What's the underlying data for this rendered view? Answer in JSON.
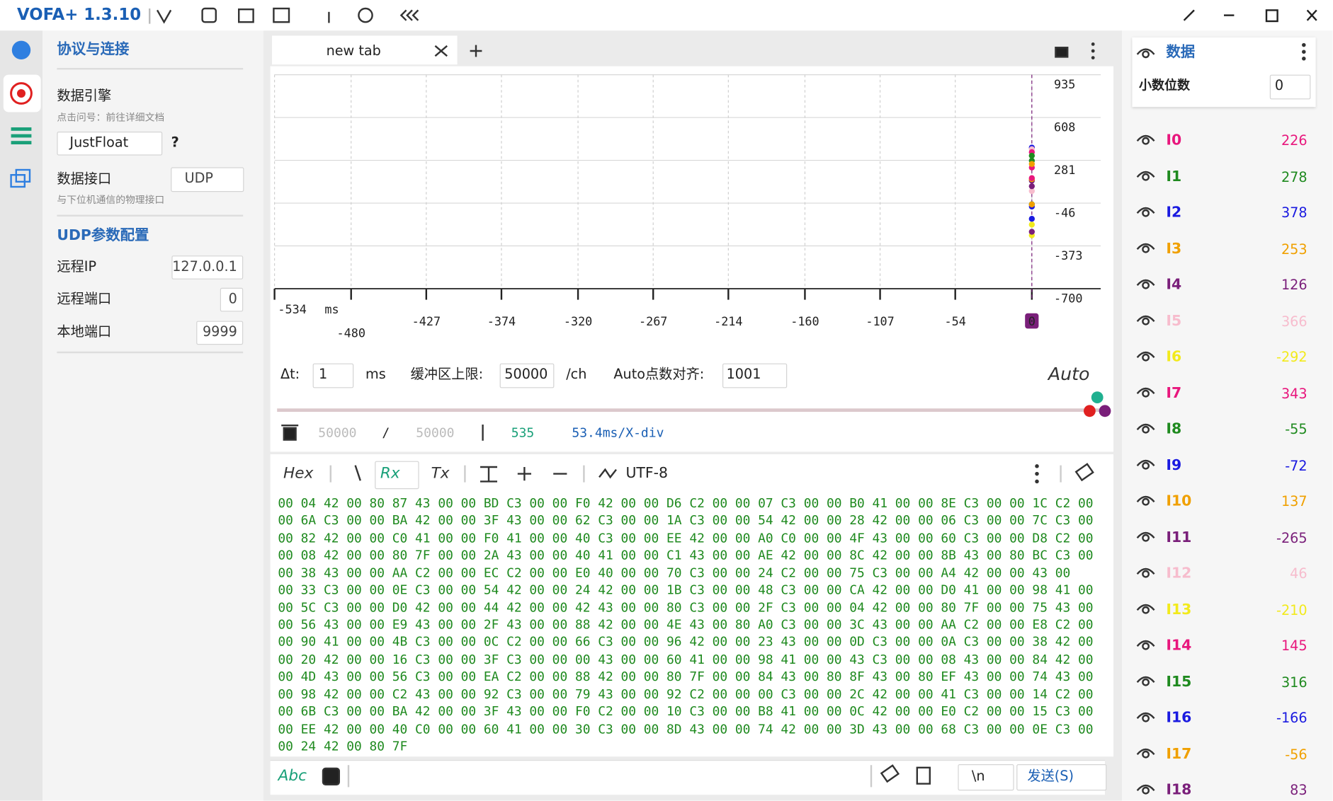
{
  "app": {
    "title": "VOFA+ 1.3.10"
  },
  "left_panel": {
    "section_title": "协议与连接",
    "engine_label": "数据引擎",
    "engine_hint": "点击问号：前往详细文档",
    "engine_value": "JustFloat",
    "help": "?",
    "interface_label": "数据接口",
    "interface_value": "UDP",
    "interface_hint": "与下位机通信的物理接口",
    "udp_title": "UDP参数配置",
    "fields": [
      {
        "label": "远程IP",
        "value": "127.0.0.1"
      },
      {
        "label": "远程端口",
        "value": 0
      },
      {
        "label": "本地端口",
        "value": 9999
      }
    ]
  },
  "tab": {
    "title": "new tab"
  },
  "plot": {
    "xlim": [
      -534,
      0
    ],
    "xticks": [
      -534,
      -480,
      -427,
      -374,
      -320,
      -267,
      -214,
      -160,
      -107,
      -54,
      0
    ],
    "x_unit": "ms",
    "ylim": [
      -700,
      935
    ],
    "yticks": [
      935,
      608,
      281,
      -46,
      -373,
      -700
    ]
  },
  "controls": {
    "dt_label": "Δt:",
    "dt_value": 1,
    "dt_unit": "ms",
    "buffer_label": "缓冲区上限:",
    "buffer_value": 50000,
    "buffer_unit": "/ch",
    "auto_align_label": "Auto点数对齐:",
    "auto_align_value": 1001,
    "mode": "Auto"
  },
  "status": {
    "used": 50000,
    "separator": "/",
    "capacity": 50000,
    "points": 535,
    "x_div": "53.4ms/X-div"
  },
  "toolbar": {
    "hex": "Hex",
    "rx": "Rx",
    "tx": "Tx",
    "encoding": "UTF-8"
  },
  "hex_lines": [
    "00 04 42 00 80 87 43 00 00 BD C3 00 00 F0 42 00 00 D6 C2 00 00 07 C3 00 00 B0 41 00 00 8E C3 00 00 1C C2 00",
    "00 6A C3 00 00 BA 42 00 00 3F 43 00 00 62 C3 00 00 1A C3 00 00 54 42 00 00 28 42 00 00 06 C3 00 00 7C C3 00",
    "00 82 42 00 00 C0 41 00 00 F0 41 00 00 40 C3 00 00 EE 42 00 00 A0 C0 00 00 4F 43 00 00 60 C3 00 00 D8 C2 00",
    "00 08 42 00 00 80 7F 00 00 2A 43 00 00 40 41 00 00 C1 43 00 00 AE 42 00 00 8C 42 00 00 8B 43 00 80 BC C3 00",
    "00 38 43 00 00 AA C2 00 00 EC C2 00 00 E0 40 00 00 70 C3 00 00 24 C2 00 00 75 C3 00 00 A4 42 00 00 43 00",
    "00 33 C3 00 00 0E C3 00 00 54 42 00 00 24 42 00 00 1B C3 00 00 48 C3 00 00 CA 42 00 00 D0 41 00 00 98 41 00",
    "00 5C C3 00 00 D0 42 00 00 44 42 00 00 42 43 00 00 80 C3 00 00 2F C3 00 00 04 42 00 00 80 7F 00 00 75 43 00",
    "00 56 43 00 00 E9 43 00 00 2F 43 00 00 88 42 00 00 4E 43 00 80 A0 C3 00 00 3C 43 00 00 AA C2 00 00 E8 C2 00",
    "00 90 41 00 00 4B C3 00 00 0C C2 00 00 66 C3 00 00 96 42 00 00 23 43 00 00 0D C3 00 00 0A C3 00 00 38 42 00",
    "00 20 42 00 00 16 C3 00 00 3F C3 00 00 00 43 00 00 60 41 00 00 98 41 00 00 43 C3 00 00 08 43 00 00 84 42 00",
    "00 4D 43 00 00 56 C3 00 00 EA C2 00 00 88 42 00 00 80 7F 00 00 84 43 00 80 8F 43 00 80 EF 43 00 00 74 43 00",
    "00 98 42 00 00 C2 43 00 00 92 C3 00 00 79 43 00 00 92 C2 00 00 00 C3 00 00 2C 42 00 00 41 C3 00 00 14 C2 00",
    "00 6B C3 00 00 BA 42 00 00 3F 43 00 00 F0 C2 00 00 10 C3 00 00 B8 41 00 00 0C 42 00 00 E0 C2 00 00 15 C3 00",
    "00 EE 42 00 00 40 C0 00 00 60 41 00 00 30 C3 00 00 8D 43 00 00 74 42 00 00 3D 43 00 00 68 C3 00 00 0E C3 00",
    "00 24 42 00 80 7F"
  ],
  "send_bar": {
    "format": "Abc",
    "line_ending": "\\n",
    "send": "发送(S)"
  },
  "data_panel": {
    "title": "数据",
    "decimals_label": "小数位数",
    "decimals_value": 0,
    "channels": [
      {
        "name": "I0",
        "color": "#e8177d",
        "value": 226
      },
      {
        "name": "I1",
        "color": "#1f8a1f",
        "value": 278
      },
      {
        "name": "I2",
        "color": "#1a1ae0",
        "value": 378
      },
      {
        "name": "I3",
        "color": "#f0a000",
        "value": 253
      },
      {
        "name": "I4",
        "color": "#7a1f7a",
        "value": 126
      },
      {
        "name": "I5",
        "color": "#f7bccd",
        "value": 366
      },
      {
        "name": "I6",
        "color": "#f2ea1c",
        "value": -292
      },
      {
        "name": "I7",
        "color": "#e8177d",
        "value": 343
      },
      {
        "name": "I8",
        "color": "#1f8a1f",
        "value": -55
      },
      {
        "name": "I9",
        "color": "#1a1ae0",
        "value": -72
      },
      {
        "name": "I10",
        "color": "#f0a000",
        "value": 137
      },
      {
        "name": "I11",
        "color": "#7a1f7a",
        "value": -265
      },
      {
        "name": "I12",
        "color": "#f7bccd",
        "value": 46
      },
      {
        "name": "I13",
        "color": "#f2ea1c",
        "value": -210
      },
      {
        "name": "I14",
        "color": "#e8177d",
        "value": 145
      },
      {
        "name": "I15",
        "color": "#1f8a1f",
        "value": 316
      },
      {
        "name": "I16",
        "color": "#1a1ae0",
        "value": -166
      },
      {
        "name": "I17",
        "color": "#f0a000",
        "value": -56
      },
      {
        "name": "I18",
        "color": "#7a1f7a",
        "value": 83
      }
    ]
  }
}
